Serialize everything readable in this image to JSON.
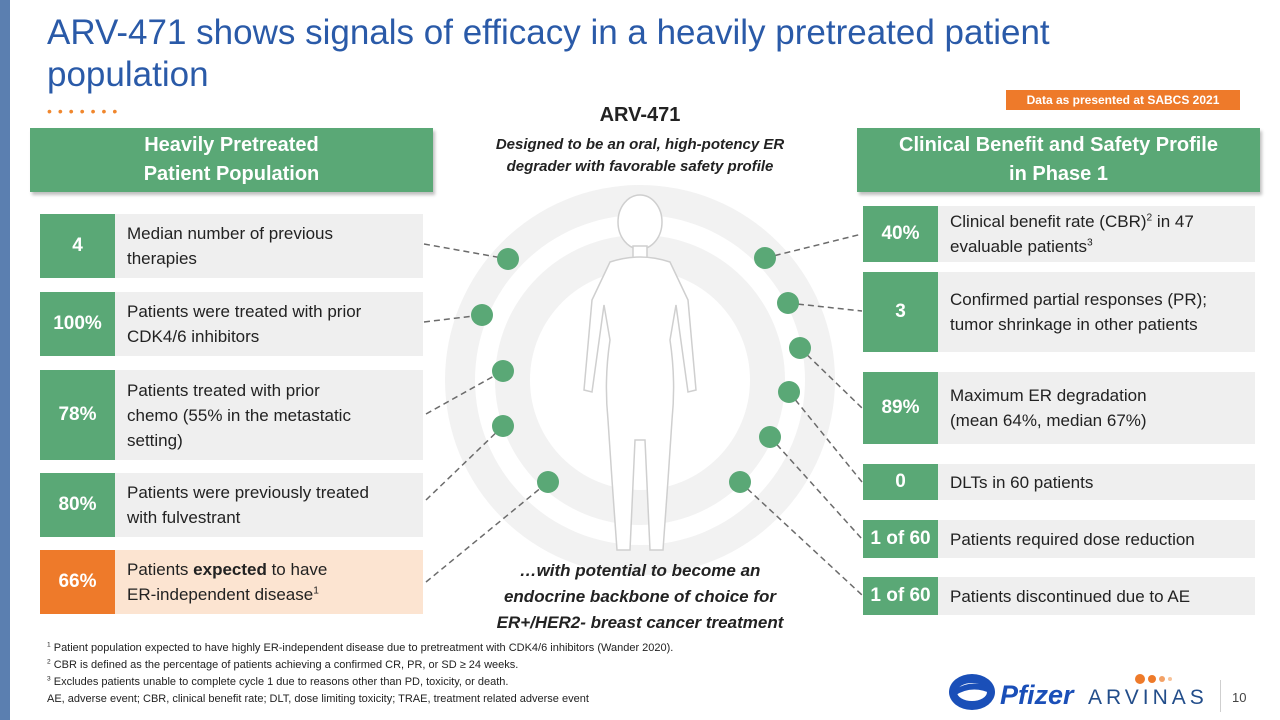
{
  "title": "ARV-471 shows signals of efficacy in a heavily pretreated patient population",
  "badge": "Data as presented at SABCS 2021",
  "left_header": [
    "Heavily Pretreated",
    "Patient Population"
  ],
  "right_header": [
    "Clinical Benefit and Safety Profile",
    "in Phase 1"
  ],
  "center": {
    "title": "ARV-471",
    "subtitle": [
      "Designed to be an oral, high-potency ER",
      "degrader with favorable safety profile"
    ],
    "bottom": [
      "…with potential to become an",
      "endocrine backbone of choice for",
      "ER+/HER2- breast cancer treatment"
    ]
  },
  "left_rows": [
    {
      "value": "4",
      "lines": [
        "Median number of previous",
        "therapies"
      ]
    },
    {
      "value": "100%",
      "lines": [
        "Patients were treated with prior",
        "CDK4/6 inhibitors"
      ]
    },
    {
      "value": "78%",
      "lines": [
        "Patients treated with prior",
        "chemo (55% in the metastatic",
        "setting)"
      ]
    },
    {
      "value": "80%",
      "lines": [
        "Patients were previously treated",
        "with fulvestrant"
      ]
    },
    {
      "value": "66%",
      "pre": "Patients ",
      "bold": "expected",
      "post": " to have",
      "line2": "ER-independent disease",
      "sup": "1"
    }
  ],
  "right_rows": [
    {
      "value": "40%",
      "l1a": "Clinical benefit rate (CBR)",
      "l1sup": "2",
      "l1b": " in 47",
      "l2a": "evaluable patients",
      "l2sup": "3"
    },
    {
      "value": "3",
      "lines": [
        "Confirmed partial responses (PR);",
        "tumor shrinkage in other patients"
      ]
    },
    {
      "value": "89%",
      "lines": [
        "Maximum ER degradation",
        "(mean 64%, median 67%)"
      ]
    },
    {
      "value": "0",
      "lines": [
        "DLTs in 60 patients"
      ]
    },
    {
      "value": "1 of 60",
      "lines": [
        "Patients required dose reduction"
      ]
    },
    {
      "value": "1 of 60",
      "lines": [
        "Patients discontinued due to AE"
      ]
    }
  ],
  "footnotes": [
    {
      "sup": "1",
      "text": " Patient population expected to have highly ER-independent disease due to pretreatment with CDK4/6 inhibitors (Wander 2020)."
    },
    {
      "sup": "2",
      "text": " CBR is defined as the percentage of patients achieving a confirmed CR, PR, or SD ≥ 24 weeks."
    },
    {
      "sup": "3",
      "text": " Excludes patients unable to complete cycle 1 due to reasons other than PD, toxicity, or death."
    },
    {
      "sup": "",
      "text": "AE, adverse event; CBR, clinical benefit rate; DLT, dose limiting toxicity; TRAE, treatment related adverse event"
    }
  ],
  "logos": {
    "pfizer": "Pfizer",
    "arvinas": "ARVINAS"
  },
  "page_number": "10",
  "colors": {
    "green": "#5aa876",
    "orange": "#ee7a2a",
    "title_blue": "#2a5aa8",
    "light_orange": "#fce4d1",
    "gray": "#efefef"
  }
}
